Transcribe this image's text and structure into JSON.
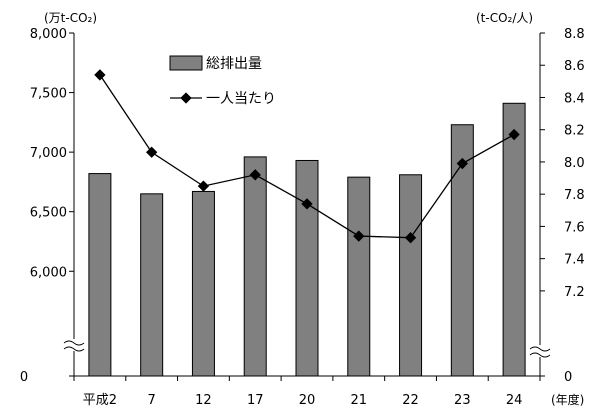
{
  "chart_data": {
    "type": "bar",
    "categories": [
      "平成2",
      "7",
      "12",
      "17",
      "20",
      "21",
      "22",
      "23",
      "24"
    ],
    "series": [
      {
        "name": "総排出量",
        "type": "bar",
        "axis": "left",
        "values": [
          6820,
          6650,
          6670,
          6960,
          6930,
          6790,
          6810,
          7230,
          7410
        ],
        "color": "#808080"
      },
      {
        "name": "一人当たり",
        "type": "line",
        "axis": "right",
        "values": [
          8.54,
          8.06,
          7.85,
          7.92,
          7.74,
          7.54,
          7.53,
          7.99,
          8.17
        ],
        "color": "#000000"
      }
    ],
    "left_axis": {
      "unit": "(万t-CO₂)",
      "ticks": [
        {
          "value": 8000,
          "label": "8,000"
        },
        {
          "value": 7500,
          "label": "7,500"
        },
        {
          "value": 7000,
          "label": "7,000"
        },
        {
          "value": 6500,
          "label": "6,500"
        },
        {
          "value": 6000,
          "label": "6,000"
        }
      ],
      "zero_label": "0",
      "ylim": [
        5700,
        8000
      ],
      "broken": true
    },
    "right_axis": {
      "unit": "(t-CO₂/人)",
      "ticks": [
        {
          "value": 8.8,
          "label": "8.8"
        },
        {
          "value": 8.6,
          "label": "8.6"
        },
        {
          "value": 8.4,
          "label": "8.4"
        },
        {
          "value": 8.2,
          "label": "8.2"
        },
        {
          "value": 8.0,
          "label": "8.0"
        },
        {
          "value": 7.8,
          "label": "7.8"
        },
        {
          "value": 7.6,
          "label": "7.6"
        },
        {
          "value": 7.4,
          "label": "7.4"
        },
        {
          "value": 7.2,
          "label": "7.2"
        }
      ],
      "zero_label": "0",
      "ylim": [
        7.1,
        8.8
      ],
      "broken": true
    },
    "x_unit": "(年度)",
    "grid": false,
    "legend_position": "top-center"
  }
}
